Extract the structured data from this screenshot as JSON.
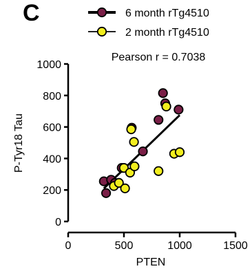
{
  "panel_letter": "C",
  "chart_data": {
    "type": "scatter",
    "xlabel": "PTEN",
    "ylabel": "P-Tyr18 Tau",
    "annotation": "Pearson r = 0.7038",
    "xlim": [
      0,
      1500
    ],
    "ylim": [
      0,
      1000
    ],
    "xticks": [
      0,
      500,
      1000,
      1500
    ],
    "yticks": [
      0,
      200,
      400,
      600,
      800,
      1000
    ],
    "grid": false,
    "legend_position": "top",
    "series": [
      {
        "name": "6 month rTg4510",
        "color": "#7a1f47",
        "points": [
          [
            320,
            255
          ],
          [
            340,
            180
          ],
          [
            385,
            265
          ],
          [
            420,
            245
          ],
          [
            480,
            340
          ],
          [
            570,
            595
          ],
          [
            670,
            445
          ],
          [
            810,
            645
          ],
          [
            850,
            815
          ],
          [
            870,
            750
          ],
          [
            990,
            710
          ]
        ],
        "trendline": [
          [
            320,
            210
          ],
          [
            1000,
            675
          ]
        ]
      },
      {
        "name": "2 month rTg4510",
        "color": "#f2ee1e",
        "points": [
          [
            410,
            225
          ],
          [
            455,
            245
          ],
          [
            500,
            340
          ],
          [
            510,
            210
          ],
          [
            555,
            310
          ],
          [
            565,
            585
          ],
          [
            590,
            505
          ],
          [
            595,
            350
          ],
          [
            810,
            320
          ],
          [
            880,
            730
          ],
          [
            950,
            430
          ],
          [
            1000,
            440
          ]
        ]
      }
    ]
  }
}
